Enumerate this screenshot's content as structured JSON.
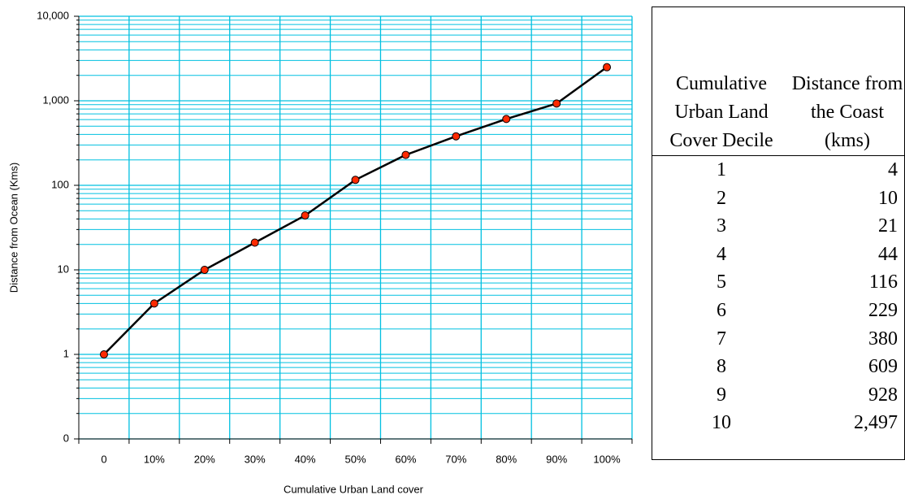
{
  "chart_data": {
    "type": "line",
    "x_label": "Cumulative Urban Land cover",
    "y_label": "Distance from Ocean (Kms)",
    "categories": [
      "0",
      "10%",
      "20%",
      "30%",
      "40%",
      "50%",
      "60%",
      "70%",
      "80%",
      "90%",
      "100%"
    ],
    "values": [
      1,
      4,
      10,
      21,
      44,
      116,
      229,
      380,
      609,
      928,
      2497
    ],
    "color": "#000000",
    "marker_color": "#ff2a00",
    "grid_color": "#00c0e0",
    "log_y": true,
    "grid": true,
    "ylim": [
      0.1,
      10000
    ],
    "yticks": [
      {
        "value": 0.1,
        "label": "0"
      },
      1,
      10,
      100,
      {
        "value": 1000,
        "label": "1,000"
      },
      {
        "value": 10000,
        "label": "10,000"
      }
    ]
  },
  "table": {
    "header": [
      "Cumulative Urban Land Cover Decile",
      "Distance from the Coast (kms)"
    ],
    "rows": [
      [
        "1",
        "4"
      ],
      [
        "2",
        "10"
      ],
      [
        "3",
        "21"
      ],
      [
        "4",
        "44"
      ],
      [
        "5",
        "116"
      ],
      [
        "6",
        "229"
      ],
      [
        "7",
        "380"
      ],
      [
        "8",
        "609"
      ],
      [
        "9",
        "928"
      ],
      [
        "10",
        "2,497"
      ]
    ]
  }
}
